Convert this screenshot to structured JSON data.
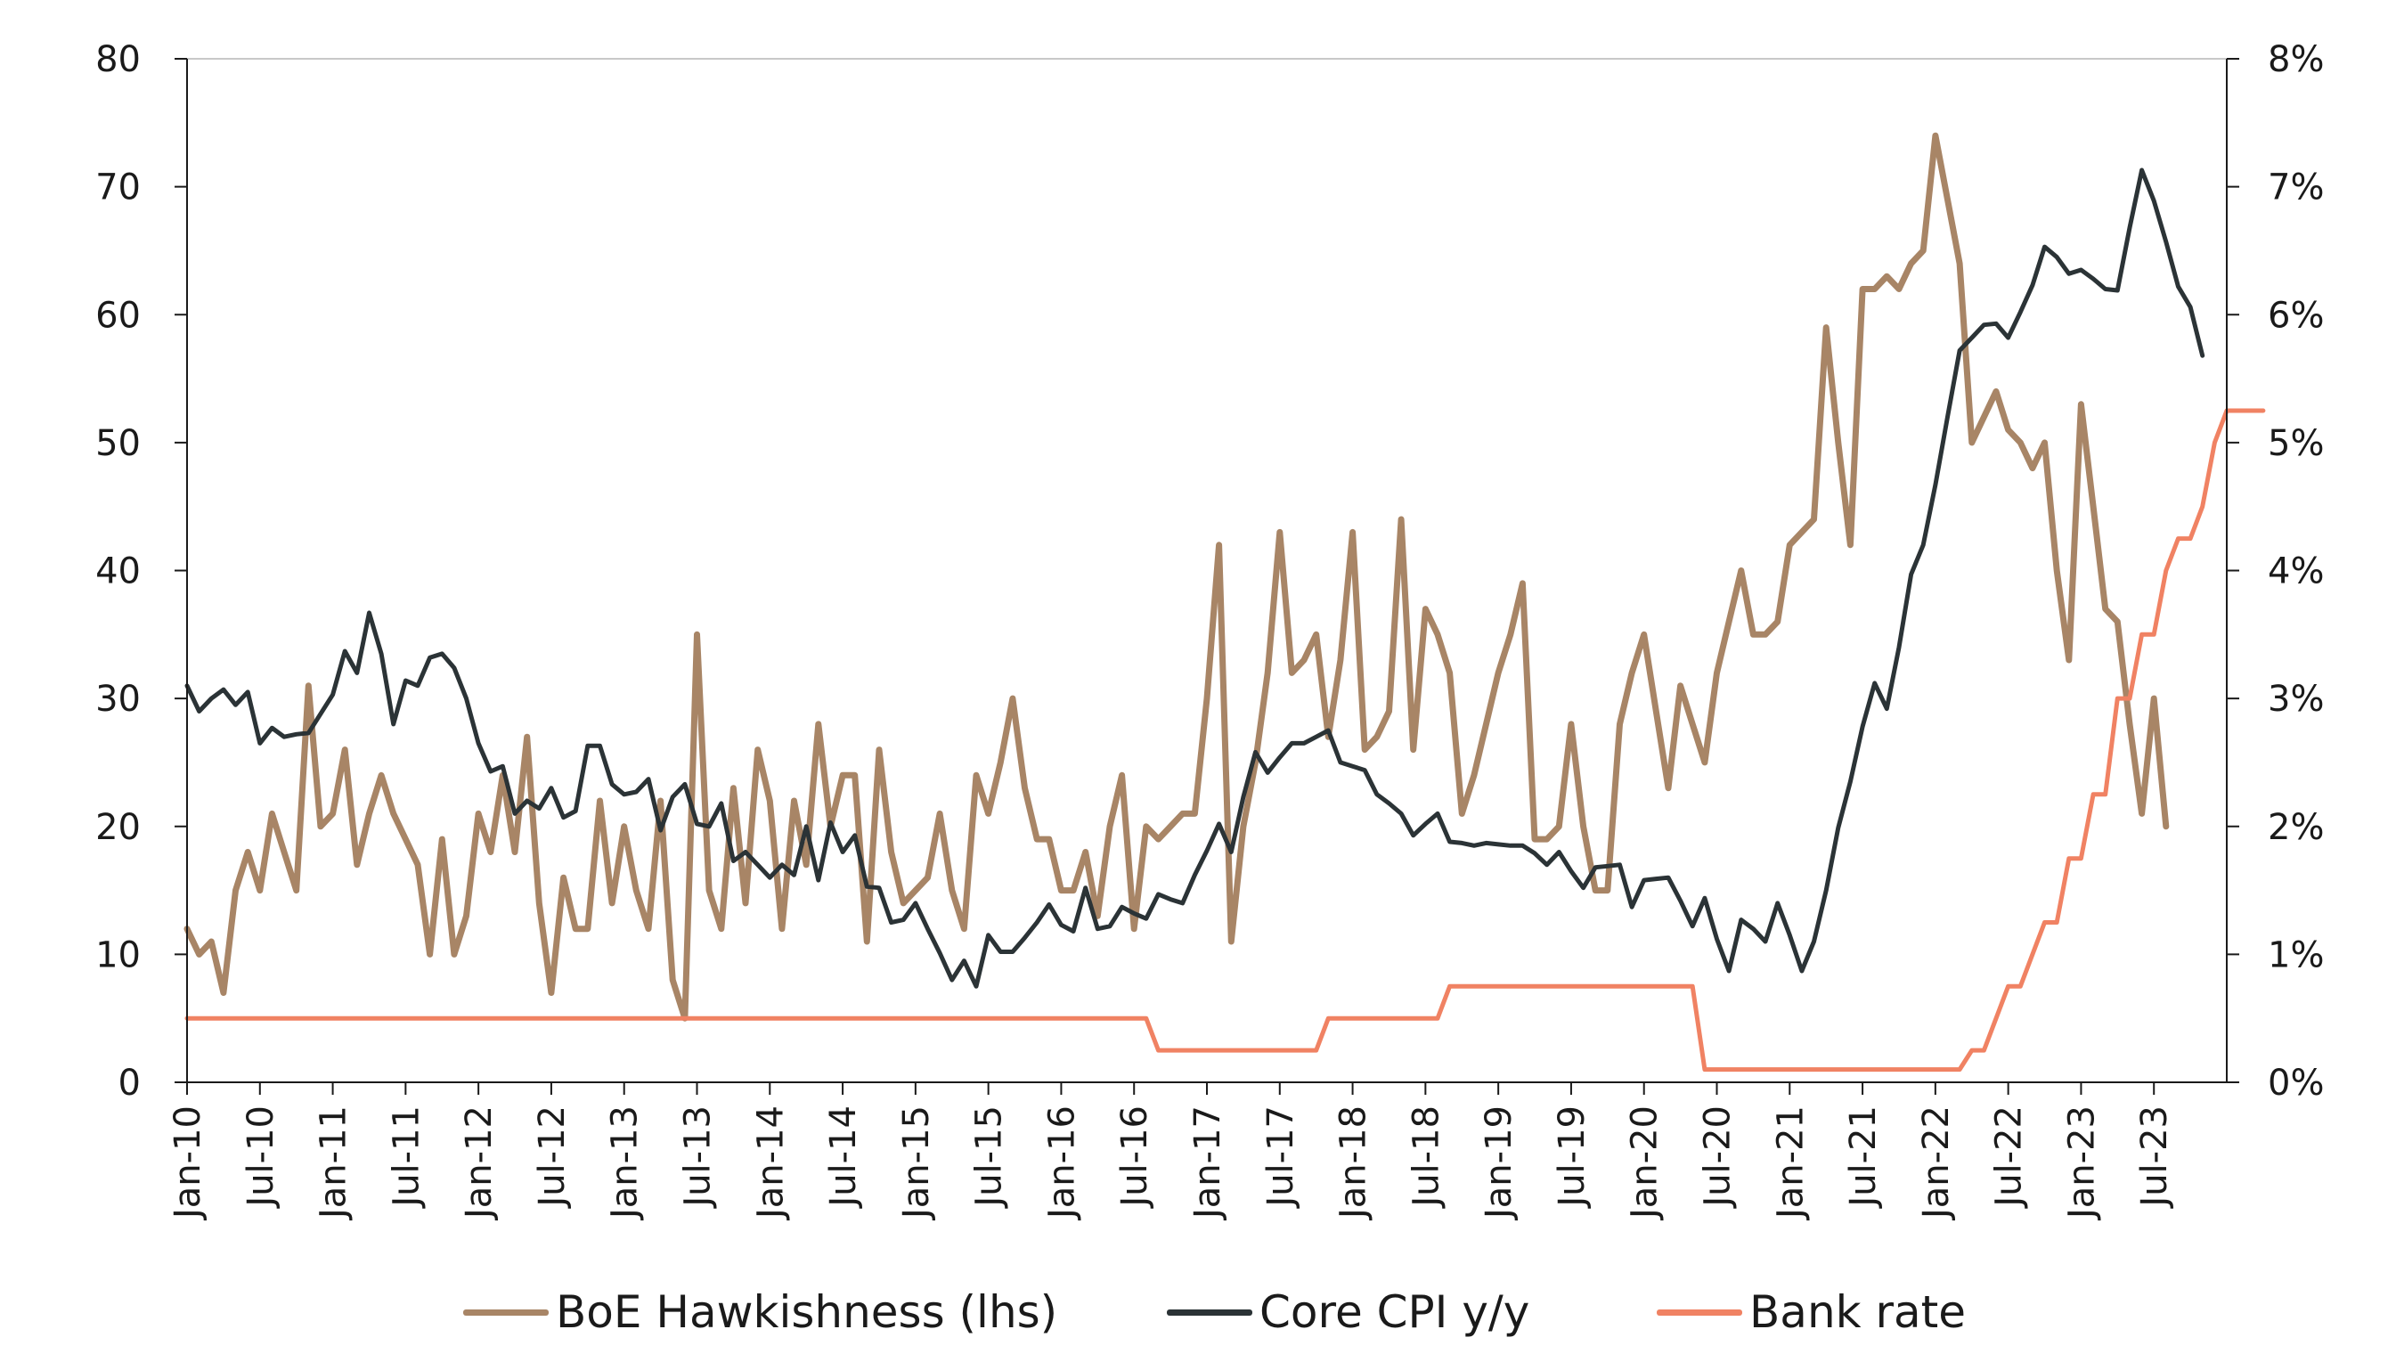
{
  "chart_data": {
    "type": "line",
    "x_tick_labels": [
      "Jan-10",
      "Jul-10",
      "Jan-11",
      "Jul-11",
      "Jan-12",
      "Jul-12",
      "Jan-13",
      "Jul-13",
      "Jan-14",
      "Jul-14",
      "Jan-15",
      "Jul-15",
      "Jan-16",
      "Jul-16",
      "Jan-17",
      "Jul-17",
      "Jan-18",
      "Jul-18",
      "Jan-19",
      "Jul-19",
      "Jan-20",
      "Jul-20",
      "Jan-21",
      "Jul-21",
      "Jan-22",
      "Jul-22",
      "Jan-23",
      "Jul-23"
    ],
    "x_start": "Jan-10",
    "x_frequency": "monthly",
    "left_axis": {
      "min": 0,
      "max": 80,
      "ticks": [
        "0",
        "10",
        "20",
        "30",
        "40",
        "50",
        "60",
        "70",
        "80"
      ]
    },
    "right_axis": {
      "min": 0,
      "max": 8,
      "ticks": [
        "0%",
        "1%",
        "2%",
        "3%",
        "4%",
        "5%",
        "6%",
        "7%",
        "8%"
      ]
    },
    "series": [
      {
        "name": "BoE Hawkishness (lhs)",
        "axis": "left",
        "color": "#a88566",
        "values": [
          12,
          10,
          11,
          7,
          15,
          18,
          15,
          21,
          18,
          15,
          31,
          20,
          21,
          26,
          17,
          21,
          24,
          21,
          19,
          17,
          10,
          19,
          10,
          13,
          21,
          18,
          24,
          18,
          27,
          14,
          7,
          16,
          12,
          12,
          22,
          14,
          20,
          15,
          12,
          22,
          8,
          5,
          35,
          15,
          12,
          23,
          14,
          26,
          22,
          12,
          22,
          17,
          28,
          20,
          24,
          24,
          11,
          26,
          18,
          14,
          15,
          16,
          21,
          15,
          12,
          24,
          21,
          25,
          30,
          23,
          19,
          19,
          15,
          15,
          18,
          13,
          20,
          24,
          12,
          20,
          19,
          20,
          21,
          21,
          30,
          42,
          11,
          20,
          25,
          32,
          43,
          32,
          33,
          35,
          27,
          33,
          43,
          26,
          27,
          29,
          44,
          26,
          37,
          35,
          32,
          21,
          24,
          28,
          32,
          35,
          39,
          19,
          19,
          20,
          28,
          20,
          15,
          15,
          28,
          32,
          35,
          29,
          23,
          31,
          28,
          25,
          32,
          36,
          40,
          35,
          35,
          36,
          42,
          43,
          44,
          59,
          50,
          42,
          62,
          62,
          63,
          62,
          64,
          65,
          74,
          69,
          64,
          50,
          52,
          54,
          51,
          50,
          48,
          50,
          40,
          33,
          53,
          45,
          37,
          36,
          28,
          21,
          30,
          20
        ]
      },
      {
        "name": "Core CPI y/y",
        "axis": "right",
        "color": "#2b3336",
        "values": [
          3.1,
          2.9,
          3.0,
          3.07,
          2.95,
          3.05,
          2.65,
          2.77,
          2.7,
          2.72,
          2.73,
          2.88,
          3.03,
          3.37,
          3.2,
          3.67,
          3.35,
          2.8,
          3.14,
          3.1,
          3.32,
          3.35,
          3.24,
          3.0,
          2.65,
          2.43,
          2.47,
          2.1,
          2.2,
          2.14,
          2.3,
          2.07,
          2.12,
          2.63,
          2.63,
          2.33,
          2.25,
          2.27,
          2.37,
          1.97,
          2.23,
          2.33,
          2.02,
          2.0,
          2.18,
          1.73,
          1.8,
          1.7,
          1.6,
          1.7,
          1.62,
          2.0,
          1.58,
          2.03,
          1.8,
          1.93,
          1.53,
          1.52,
          1.25,
          1.27,
          1.4,
          1.2,
          1.01,
          0.8,
          0.95,
          0.75,
          1.15,
          1.02,
          1.02,
          1.13,
          1.25,
          1.39,
          1.23,
          1.18,
          1.52,
          1.2,
          1.22,
          1.37,
          1.32,
          1.28,
          1.47,
          1.43,
          1.4,
          1.62,
          1.81,
          2.02,
          1.8,
          2.23,
          2.58,
          2.42,
          2.54,
          2.65,
          2.65,
          2.7,
          2.75,
          2.5,
          2.47,
          2.44,
          2.25,
          2.18,
          2.1,
          1.93,
          2.02,
          2.1,
          1.88,
          1.87,
          1.85,
          1.87,
          1.86,
          1.85,
          1.85,
          1.79,
          1.7,
          1.8,
          1.65,
          1.52,
          1.68,
          1.69,
          1.7,
          1.37,
          1.58,
          1.59,
          1.6,
          1.42,
          1.22,
          1.44,
          1.12,
          0.87,
          1.27,
          1.2,
          1.1,
          1.4,
          1.15,
          0.87,
          1.1,
          1.5,
          1.99,
          2.35,
          2.78,
          3.12,
          2.92,
          3.4,
          3.97,
          4.2,
          4.67,
          5.2,
          5.72,
          5.82,
          5.92,
          5.93,
          5.82,
          6.02,
          6.23,
          6.53,
          6.45,
          6.32,
          6.35,
          6.28,
          6.2,
          6.19,
          6.68,
          7.13,
          6.89,
          6.57,
          6.22,
          6.06,
          5.68
        ]
      },
      {
        "name": "Bank rate",
        "axis": "right",
        "color": "#f08263",
        "values": [
          0.5,
          0.5,
          0.5,
          0.5,
          0.5,
          0.5,
          0.5,
          0.5,
          0.5,
          0.5,
          0.5,
          0.5,
          0.5,
          0.5,
          0.5,
          0.5,
          0.5,
          0.5,
          0.5,
          0.5,
          0.5,
          0.5,
          0.5,
          0.5,
          0.5,
          0.5,
          0.5,
          0.5,
          0.5,
          0.5,
          0.5,
          0.5,
          0.5,
          0.5,
          0.5,
          0.5,
          0.5,
          0.5,
          0.5,
          0.5,
          0.5,
          0.5,
          0.5,
          0.5,
          0.5,
          0.5,
          0.5,
          0.5,
          0.5,
          0.5,
          0.5,
          0.5,
          0.5,
          0.5,
          0.5,
          0.5,
          0.5,
          0.5,
          0.5,
          0.5,
          0.5,
          0.5,
          0.5,
          0.5,
          0.5,
          0.5,
          0.5,
          0.5,
          0.5,
          0.5,
          0.5,
          0.5,
          0.5,
          0.5,
          0.5,
          0.5,
          0.5,
          0.5,
          0.5,
          0.5,
          0.25,
          0.25,
          0.25,
          0.25,
          0.25,
          0.25,
          0.25,
          0.25,
          0.25,
          0.25,
          0.25,
          0.25,
          0.25,
          0.25,
          0.5,
          0.5,
          0.5,
          0.5,
          0.5,
          0.5,
          0.5,
          0.5,
          0.5,
          0.5,
          0.75,
          0.75,
          0.75,
          0.75,
          0.75,
          0.75,
          0.75,
          0.75,
          0.75,
          0.75,
          0.75,
          0.75,
          0.75,
          0.75,
          0.75,
          0.75,
          0.75,
          0.75,
          0.75,
          0.75,
          0.75,
          0.1,
          0.1,
          0.1,
          0.1,
          0.1,
          0.1,
          0.1,
          0.1,
          0.1,
          0.1,
          0.1,
          0.1,
          0.1,
          0.1,
          0.1,
          0.1,
          0.1,
          0.1,
          0.1,
          0.1,
          0.1,
          0.1,
          0.25,
          0.25,
          0.5,
          0.75,
          0.75,
          1.0,
          1.25,
          1.25,
          1.75,
          1.75,
          2.25,
          2.25,
          3.0,
          3.0,
          3.5,
          3.5,
          4.0,
          4.25,
          4.25,
          4.5,
          5.0,
          5.25,
          5.25,
          5.25,
          5.25
        ]
      }
    ],
    "grid": false
  }
}
